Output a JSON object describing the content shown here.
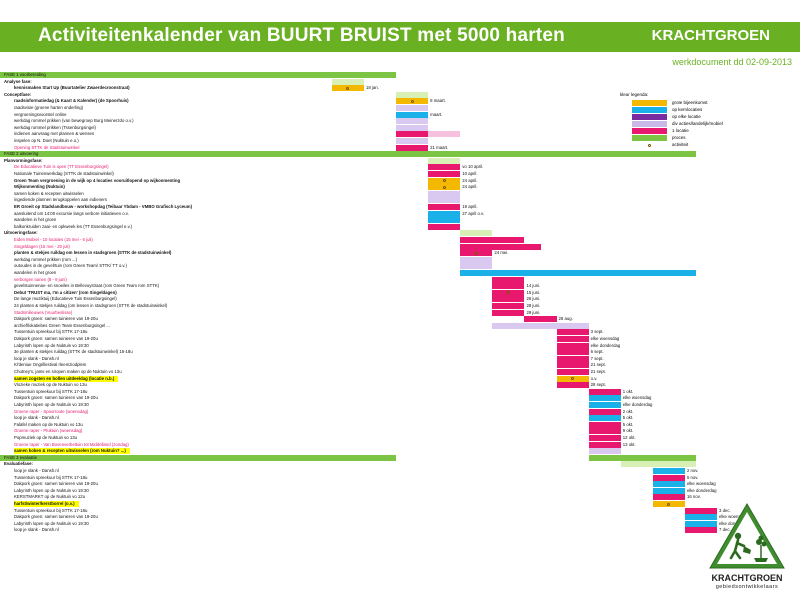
{
  "header": {
    "title": "Activiteitenkalender van BUURT BRUIST met 5000 harten",
    "brand": "KRACHTGROEN",
    "subtitle": "werkdocument dd 02-09-2013"
  },
  "legend": {
    "title": "kleur legenda:",
    "items": [
      {
        "color": "#f5b800",
        "label": "grote bijeenkomst"
      },
      {
        "color": "#1ab0e8",
        "label": "op kernlocaties"
      },
      {
        "color": "#7a2da0",
        "label": "op elke locatie"
      },
      {
        "color": "#c9b8e8",
        "label": "div acties/landelijk/mobiel"
      },
      {
        "color": "#e8186e",
        "label": "1 locatie"
      },
      {
        "color": "#7cc444",
        "label": "proces"
      },
      {
        "marker": true,
        "label": "activiteit"
      }
    ]
  },
  "logo": {
    "name": "KRACHTGROEN",
    "sub": "gebiedsontwikkelaars"
  },
  "colors": {
    "yellow": "#f5b800",
    "blue": "#1ab0e8",
    "purple": "#7a2da0",
    "lavender": "#d9c8ef",
    "pink": "#e8186e",
    "green": "#7cc444",
    "lightgreen": "#d8efb6",
    "lightpink": "#f6c1dc"
  },
  "rows": [
    {
      "label": "FASE 1 voorbereiding",
      "style": "phase",
      "bars": [
        {
          "c": "green",
          "s": 0,
          "e": 43
        }
      ]
    },
    {
      "label": "Analyse fase:",
      "style": "sec",
      "bars": [
        {
          "c": "lightgreen",
          "s": 31,
          "e": 37
        }
      ]
    },
    {
      "label": "kennismaken  Start Up (Buurtatelier Zwaerdecroonstraat)",
      "style": "b0",
      "bars": [
        {
          "c": "yellow",
          "s": 31,
          "e": 37,
          "mk": true
        }
      ],
      "date": "18 jan."
    },
    {
      "label": "Conceptfase:",
      "style": "sec",
      "bars": [
        {
          "c": "lightgreen",
          "s": 43,
          "e": 49
        }
      ]
    },
    {
      "label": "raadsinformatiedag (& Kaart & Kalender) (de Spoorhuis)",
      "style": "b",
      "bars": [
        {
          "c": "yellow",
          "s": 43,
          "e": 49,
          "mk": true
        }
      ],
      "date": "8 maart."
    },
    {
      "label": "raadsvisie (groene harten onderling)",
      "style": "n",
      "bars": [
        {
          "c": "lavender",
          "s": 43,
          "e": 49
        }
      ]
    },
    {
      "label": "vergroeningsvoorstel online",
      "style": "n",
      "bars": [
        {
          "c": "blue",
          "s": 43,
          "e": 49
        }
      ],
      "date": "maart."
    },
    {
      "label": "werkdag rommel prikken (van bewegroep Burg Meinerzdo o.v.)",
      "style": "n",
      "bars": [
        {
          "c": "lavender",
          "s": 43,
          "e": 49
        }
      ]
    },
    {
      "label": "werkdag rommel prikken (Tssenburgsingel)",
      "style": "n",
      "bars": [
        {
          "c": "lavender",
          "s": 43,
          "e": 49
        }
      ]
    },
    {
      "label": "indienen aanvraag met plannen & wensen",
      "style": "n",
      "bars": [
        {
          "c": "pink",
          "s": 43,
          "e": 49
        },
        {
          "c": "lightpink",
          "s": 49,
          "e": 55
        }
      ]
    },
    {
      "label": "inspelen op N. Doet (Nuktuin e.o.)",
      "style": "n",
      "bars": [
        {
          "c": "lavender",
          "s": 43,
          "e": 49
        }
      ]
    },
    {
      "label": "Opening STTK de Stadstuinwinkel",
      "style": "mag",
      "bars": [
        {
          "c": "pink",
          "s": 43,
          "e": 49
        }
      ],
      "date": "21 maart."
    },
    {
      "label": "FASE 2 uitvoering",
      "style": "phase",
      "bars": [
        {
          "c": "green",
          "s": 0,
          "e": 99
        }
      ]
    },
    {
      "label": "Planvormingsfase:",
      "style": "sec",
      "bars": [
        {
          "c": "lightgreen",
          "s": 49,
          "e": 55
        }
      ]
    },
    {
      "label": "De Educatieve Tuin is open (TT Essenburgsingel)",
      "style": "mag",
      "bars": [
        {
          "c": "pink",
          "s": 49,
          "e": 55
        }
      ],
      "date": "vo 10 april."
    },
    {
      "label": "Nationale Tuinenwerkdag (STTK de stadstuinwinkel)",
      "style": "n",
      "bars": [
        {
          "c": "pink",
          "s": 49,
          "e": 55
        }
      ],
      "date": "10 april."
    },
    {
      "label": "Groen Team vergroening in de wijk op 4 locaties vooruitlopend op wijkonmenting",
      "style": "b",
      "bars": [
        {
          "c": "yellow",
          "s": 49,
          "e": 55,
          "mk": true
        }
      ],
      "date": "24 april."
    },
    {
      "label": "Wijkonmenting (Nuktuin)",
      "style": "b",
      "bars": [
        {
          "c": "yellow",
          "s": 49,
          "e": 55,
          "mk": true
        }
      ],
      "date": "24 april."
    },
    {
      "label": "samen koken & recepten uitwisselen",
      "style": "n",
      "bars": [
        {
          "c": "lavender",
          "s": 49,
          "e": 55
        }
      ]
    },
    {
      "label": "ingediende plannen terugkoppelen aan indieners",
      "style": "n",
      "bars": [
        {
          "c": "lavender",
          "s": 49,
          "e": 55
        }
      ]
    },
    {
      "label": "ER Groeit op Stadslandbouw - workshopdag (Teibaar Ybdam - VMBO Grafisch Lyceum)",
      "style": "b",
      "bars": [
        {
          "c": "pink",
          "s": 49,
          "e": 55
        }
      ],
      "date": "19 april."
    },
    {
      "label": "aansluitend om 14:00 excursie langs verbore initiatieven o.v.",
      "style": "n",
      "bars": [
        {
          "c": "blue",
          "s": 49,
          "e": 55
        }
      ],
      "date": "27 april o.v."
    },
    {
      "label": "wandelen in het groen",
      "style": "n",
      "bars": [
        {
          "c": "blue",
          "s": 49,
          "e": 55
        }
      ]
    },
    {
      "label": "balkonkruiden zaai- en opkweek les (TT Essenburgsingel e.v.)",
      "style": "n",
      "bars": [
        {
          "c": "pink",
          "s": 49,
          "e": 55
        }
      ]
    },
    {
      "label": "Uitvoeringsfase:",
      "style": "sec",
      "bars": [
        {
          "c": "lightgreen",
          "s": 55,
          "e": 61
        }
      ]
    },
    {
      "label": "Eiden Mobiel - 10 locaties (15 mei - 6 juli)",
      "style": "mag",
      "bars": [
        {
          "c": "pink",
          "s": 55,
          "e": 67
        }
      ]
    },
    {
      "label": "Singeldagen (15 mei - 20 juli)",
      "style": "mag",
      "bars": [
        {
          "c": "pink",
          "s": 55,
          "e": 70
        }
      ]
    },
    {
      "label": "planten & stekjes ruildag om lessen in stadsgroen (STTK de stadstuinwinkel)",
      "style": "b",
      "bars": [
        {
          "c": "pink",
          "s": 55,
          "e": 61,
          "mk": true
        }
      ],
      "date": "24 mei."
    },
    {
      "label": "werkdag rommel prikken (rom ...)",
      "style": "n",
      "bars": [
        {
          "c": "lavender",
          "s": 55,
          "e": 61
        }
      ]
    },
    {
      "label": "outoudes in de gevelrtuin (rom Green Team/ STTK/ TT o.v.)",
      "style": "n",
      "bars": [
        {
          "c": "lavender",
          "s": 55,
          "e": 61
        }
      ]
    },
    {
      "label": "wandelen in het groen",
      "style": "n",
      "bars": [
        {
          "c": "blue",
          "s": 55,
          "e": 99
        }
      ]
    },
    {
      "label": "verborgen tuinen (8 - 9 juni)",
      "style": "mag",
      "bars": [
        {
          "c": "pink",
          "s": 61,
          "e": 67
        }
      ]
    },
    {
      "label": "gevelstuinnenav- en snoeiles  in Bellevuystraat (rom Green Team rom STTK)",
      "style": "n",
      "bars": [
        {
          "c": "pink",
          "s": 61,
          "e": 67
        }
      ],
      "date": "14 juni."
    },
    {
      "label": "Debut 'TRUST ma, I'm a citizen' (rom Singeldagen)",
      "style": "b",
      "bars": [
        {
          "c": "pink",
          "s": 61,
          "e": 67,
          "mk": true
        }
      ],
      "date": "15 juni."
    },
    {
      "label": "De lange muziktuij (Educatieve Tuin Essenburgsingel)",
      "style": "n",
      "bars": [
        {
          "c": "pink",
          "s": 61,
          "e": 67
        }
      ],
      "date": "26 juni."
    },
    {
      "label": "24 planten & stekjes ruildag (om lessen in stadsgroen (STTK de stadstuinwinkel)",
      "style": "n",
      "bars": [
        {
          "c": "pink",
          "s": 61,
          "e": 67
        }
      ],
      "date": "28 juni."
    },
    {
      "label": "Stadsmilieuwes (Vuurbeslisse)",
      "style": "mag",
      "bars": [
        {
          "c": "pink",
          "s": 61,
          "e": 67
        }
      ],
      "date": "29 juni."
    },
    {
      "label": "Dakpork groen: samen tuinieren van 19-20u",
      "style": "n",
      "bars": [
        {
          "c": "pink",
          "s": 67,
          "e": 73
        }
      ],
      "date": "28 aug."
    },
    {
      "label": "archief/lokatiebes Green Team Essenburgsingel ...",
      "style": "lav",
      "bars": [
        {
          "c": "lavender",
          "s": 61,
          "e": 79
        }
      ]
    },
    {
      "label": "Tussentuin spreekuur bij STTK 17-18u",
      "style": "n",
      "bars": [
        {
          "c": "pink",
          "s": 73,
          "e": 79
        }
      ],
      "date": "3 sept."
    },
    {
      "label": "Dakpork groen: samen tuinieren van 19-20u",
      "style": "n",
      "bars": [
        {
          "c": "pink",
          "s": 73,
          "e": 79
        }
      ],
      "date": "elke woensdag"
    },
    {
      "label": "Labyrinth lopen op de Nuktuin  vo 19:30",
      "style": "n",
      "bars": [
        {
          "c": "pink",
          "s": 73,
          "e": 79
        }
      ],
      "date": "elke donderdag"
    },
    {
      "label": "3e planten & stekjes ruildag (STTK de stadstuinwinkel) 15-18u",
      "style": "n",
      "bars": [
        {
          "c": "pink",
          "s": 73,
          "e": 79
        }
      ],
      "date": "6 sept."
    },
    {
      "label": "loop je slank - Dansh.nl",
      "style": "n",
      "bars": [
        {
          "c": "pink",
          "s": 73,
          "e": 79
        }
      ],
      "date": "7 sept."
    },
    {
      "label": "Kl'deniue Ongrillestival rleemziodplein",
      "style": "n",
      "bars": [
        {
          "c": "pink",
          "s": 73,
          "e": 79
        }
      ],
      "date": "21 sept."
    },
    {
      "label": "Chutney's, jams en siropen maken op de Nuktuin vo 13u",
      "style": "n",
      "bars": [
        {
          "c": "pink",
          "s": 73,
          "e": 79
        }
      ],
      "date": "21 sept."
    },
    {
      "label": "samen zogsten en bollen uitdeeldag (locatie n.b.)",
      "style": "hl",
      "bars": [
        {
          "c": "yellow",
          "s": 73,
          "e": 79,
          "mk": true
        }
      ],
      "date": "o.v."
    },
    {
      "label": "Vlozieke muziek op de Nuktuin vo 13u",
      "style": "n",
      "bars": [
        {
          "c": "pink",
          "s": 73,
          "e": 79
        }
      ],
      "date": "28 sept."
    },
    {
      "label": "Tussentuin spreekuur bij STTK 17-18u",
      "style": "n",
      "bars": [
        {
          "c": "pink",
          "s": 79,
          "e": 85
        }
      ],
      "date": "1 okt."
    },
    {
      "label": "Dakpork groen: samen tuinieren van 19-20u",
      "style": "n",
      "bars": [
        {
          "c": "blue",
          "s": 79,
          "e": 85
        }
      ],
      "date": "elke woensdag"
    },
    {
      "label": "Labyrinth lopen op de Nuktuin  vo 19:30",
      "style": "n",
      "bars": [
        {
          "c": "blue",
          "s": 79,
          "e": 85
        }
      ],
      "date": "elke donderdag"
    },
    {
      "label": "Groene raper - Spoorroute (woensdag)",
      "style": "mag",
      "bars": [
        {
          "c": "pink",
          "s": 79,
          "e": 85
        }
      ],
      "date": "2 okt."
    },
    {
      "label": "loop je slank - Dansh.nl",
      "style": "n",
      "bars": [
        {
          "c": "blue",
          "s": 79,
          "e": 85
        }
      ],
      "date": "5 okt."
    },
    {
      "label": "Falafel maken op de Nuktuin vo 13u",
      "style": "n",
      "bars": [
        {
          "c": "pink",
          "s": 79,
          "e": 85
        }
      ],
      "date": "5 okt."
    },
    {
      "label": "Groene raper - Pluktuin (woensdag)",
      "style": "mag",
      "bars": [
        {
          "c": "pink",
          "s": 79,
          "e": 85
        }
      ],
      "date": "9 okt."
    },
    {
      "label": "Popmuziek op de Nuktuin vo 13u",
      "style": "n",
      "bars": [
        {
          "c": "pink",
          "s": 79,
          "e": 85
        }
      ],
      "date": "12 okt."
    },
    {
      "label": "Groene raper - Van Bovenverbeltuin tot Middelland (zondag)",
      "style": "mag",
      "bars": [
        {
          "c": "pink",
          "s": 79,
          "e": 85
        }
      ],
      "date": "13 okt."
    },
    {
      "label": "samen koken & recepten uitwisselen (rom Nuktuin? ...)",
      "style": "hl",
      "bars": [
        {
          "c": "lavender",
          "s": 79,
          "e": 85
        }
      ]
    },
    {
      "label": "FASE 3 evaluatie",
      "style": "phase",
      "bars": [
        {
          "c": "green",
          "s": 0,
          "e": 43
        },
        {
          "c": "green",
          "s": 79,
          "e": 99
        }
      ]
    },
    {
      "label": "Evaluatiefase:",
      "style": "sec",
      "bars": [
        {
          "c": "lightgreen",
          "s": 85,
          "e": 99
        }
      ]
    },
    {
      "label": "loop je slank - Dansh.nl",
      "style": "n",
      "bars": [
        {
          "c": "blue",
          "s": 91,
          "e": 97
        }
      ],
      "date": "2 nov."
    },
    {
      "label": "Tussentuin spreekuur bij STTK 17-18u",
      "style": "n",
      "bars": [
        {
          "c": "pink",
          "s": 91,
          "e": 97
        }
      ],
      "date": "5 nov."
    },
    {
      "label": "Dakpork groen: samen tuinieren van 19-20u",
      "style": "n",
      "bars": [
        {
          "c": "blue",
          "s": 91,
          "e": 97
        }
      ],
      "date": "elke woensdag"
    },
    {
      "label": "Labyrinth lopen op de Nuktuin  vo 19:30",
      "style": "n",
      "bars": [
        {
          "c": "blue",
          "s": 91,
          "e": 97
        }
      ],
      "date": "elke donderdag"
    },
    {
      "label": "KERSTMARKT op de Nuktuin  vo 12u",
      "style": "n",
      "bars": [
        {
          "c": "pink",
          "s": 91,
          "e": 97
        }
      ],
      "date": "16 nov."
    },
    {
      "label": "harfst/winter/kerstborrel (o.v.)",
      "style": "hl",
      "bars": [
        {
          "c": "yellow",
          "s": 91,
          "e": 97,
          "mk": true
        }
      ]
    },
    {
      "label": "Tussentuin spreekuur bij STTK 17-18u",
      "style": "n",
      "bars": [
        {
          "c": "pink",
          "s": 97,
          "e": 103
        }
      ],
      "date": "3 dec."
    },
    {
      "label": "Dakpork groen: samen tuinieren van 19-20u",
      "style": "n",
      "bars": [
        {
          "c": "blue",
          "s": 97,
          "e": 103
        }
      ],
      "date": "elke woensdag"
    },
    {
      "label": "Labyrinth lopen op de Nuktuin  vo 19:30",
      "style": "n",
      "bars": [
        {
          "c": "blue",
          "s": 97,
          "e": 103
        }
      ],
      "date": "elke donderdag"
    },
    {
      "label": "loop je slank - Dansh.nl",
      "style": "n",
      "bars": [
        {
          "c": "pink",
          "s": 97,
          "e": 103
        }
      ],
      "date": "7 dec."
    }
  ]
}
